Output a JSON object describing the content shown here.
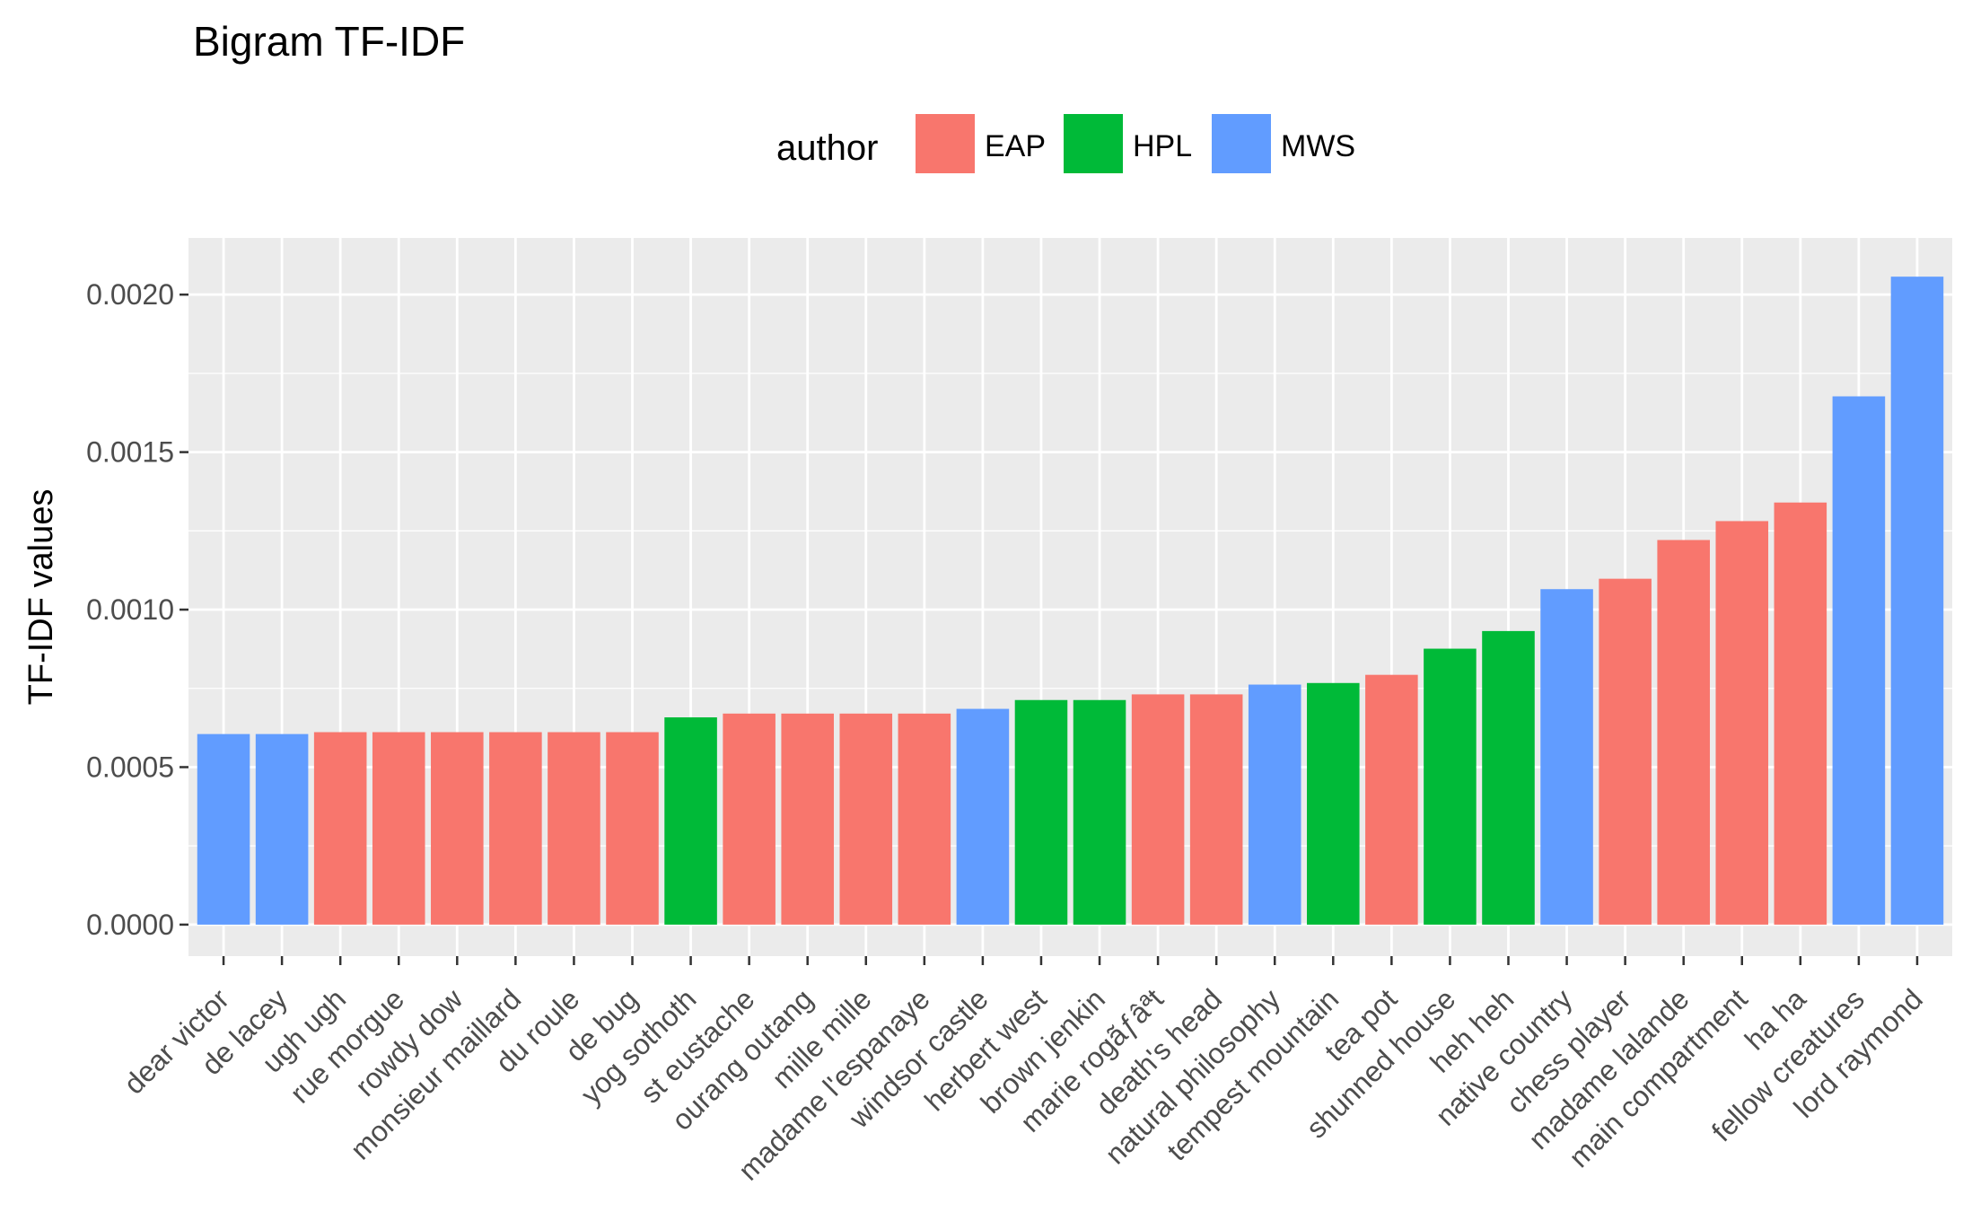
{
  "chart_data": {
    "type": "bar",
    "title": "Bigram TF-IDF",
    "xlabel": "",
    "ylabel": "TF-IDF values",
    "ylim": [
      -0.0001,
      0.00218
    ],
    "yticks": [
      "0.0000",
      "0.0005",
      "0.0010",
      "0.0015",
      "0.0020"
    ],
    "grid": true,
    "legend": {
      "title": "author",
      "placement": "top",
      "entries": [
        {
          "name": "EAP",
          "color": "#F8766D"
        },
        {
          "name": "HPL",
          "color": "#00BA38"
        },
        {
          "name": "MWS",
          "color": "#619CFF"
        }
      ]
    },
    "categories": [
      "dear victor",
      "de lacey",
      "ugh ugh",
      "rue morgue",
      "rowdy dow",
      "monsieur maillard",
      "du roule",
      "de bug",
      "yog sothoth",
      "st eustache",
      "ourang outang",
      "mille mille",
      "madame l'espanaye",
      "windsor castle",
      "herbert west",
      "brown jenkin",
      "marie rogãƒâªt",
      "death's head",
      "natural philosophy",
      "tempest mountain",
      "tea pot",
      "shunned house",
      "heh heh",
      "native country",
      "chess player",
      "madame lalande",
      "main compartment",
      "ha ha",
      "fellow creatures",
      "lord raymond"
    ],
    "authors": [
      "MWS",
      "MWS",
      "EAP",
      "EAP",
      "EAP",
      "EAP",
      "EAP",
      "EAP",
      "HPL",
      "EAP",
      "EAP",
      "EAP",
      "EAP",
      "MWS",
      "HPL",
      "HPL",
      "EAP",
      "EAP",
      "MWS",
      "HPL",
      "EAP",
      "HPL",
      "HPL",
      "MWS",
      "EAP",
      "EAP",
      "EAP",
      "EAP",
      "MWS",
      "MWS"
    ],
    "values": [
      0.000605,
      0.000605,
      0.000611,
      0.000611,
      0.000611,
      0.000611,
      0.000611,
      0.000611,
      0.000658,
      0.00067,
      0.00067,
      0.00067,
      0.00067,
      0.000685,
      0.000713,
      0.000713,
      0.000731,
      0.000731,
      0.000762,
      0.000767,
      0.000793,
      0.000876,
      0.000932,
      0.001065,
      0.001098,
      0.001221,
      0.001281,
      0.00134,
      0.001677,
      0.002057
    ]
  }
}
